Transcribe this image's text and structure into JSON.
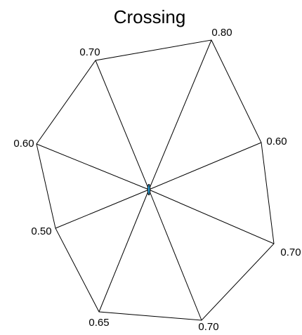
{
  "chart_data": {
    "type": "radar",
    "title": "Crossing",
    "axes": [
      {
        "label": "0.80"
      },
      {
        "label": "0.60"
      },
      {
        "label": "0.70"
      },
      {
        "label": "0.70"
      },
      {
        "label": "0.65"
      },
      {
        "label": "0.50"
      },
      {
        "label": "0.60"
      },
      {
        "label": "0.70"
      }
    ],
    "series": [
      {
        "values": [
          0.02,
          0.02,
          0.02,
          0.02,
          0.02,
          0.02,
          0.02,
          0.02
        ],
        "color": "#2a9fd6"
      }
    ],
    "grid": false,
    "legend": "none"
  }
}
